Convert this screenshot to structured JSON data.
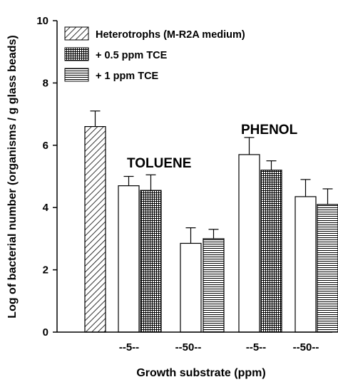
{
  "chart_data": {
    "type": "bar",
    "title": "",
    "xlabel": "Growth substrate (ppm)",
    "ylabel": "Log of bacterial number (organisms / g  glass beads)",
    "ylim": [
      0,
      10
    ],
    "yticks": [
      "0",
      "2",
      "4",
      "6",
      "8",
      "10"
    ],
    "grid": false,
    "legend_position": "top-left",
    "legend": [
      {
        "label": "Heterotrophs (M-R2A medium)",
        "pattern": "diagonal-hatch"
      },
      {
        "label": "+ 0.5 ppm TCE",
        "pattern": "crosshatch"
      },
      {
        "label": "+ 1 ppm TCE",
        "pattern": "horizontal-lines"
      }
    ],
    "annotations": [
      {
        "text": "TOLUENE",
        "group": "toluene"
      },
      {
        "text": "PHENOL",
        "group": "phenol"
      }
    ],
    "group_labels": [
      "--5--",
      "--50--",
      "--5--",
      "--50--"
    ],
    "bars": [
      {
        "group": "heterotrophs",
        "pattern": "diagonal-hatch",
        "value": 6.6,
        "error": 0.5
      },
      {
        "group": "toluene-5",
        "pattern": "open",
        "value": 4.7,
        "error": 0.3
      },
      {
        "group": "toluene-5",
        "pattern": "crosshatch",
        "value": 4.55,
        "error": 0.5
      },
      {
        "group": "toluene-50",
        "pattern": "open",
        "value": 2.85,
        "error": 0.5
      },
      {
        "group": "toluene-50",
        "pattern": "horizontal-lines",
        "value": 3.0,
        "error": 0.3
      },
      {
        "group": "phenol-5",
        "pattern": "open",
        "value": 5.7,
        "error": 0.55
      },
      {
        "group": "phenol-5",
        "pattern": "crosshatch",
        "value": 5.2,
        "error": 0.3
      },
      {
        "group": "phenol-50",
        "pattern": "open",
        "value": 4.35,
        "error": 0.55
      },
      {
        "group": "phenol-50",
        "pattern": "horizontal-lines",
        "value": 4.1,
        "error": 0.5
      }
    ]
  }
}
